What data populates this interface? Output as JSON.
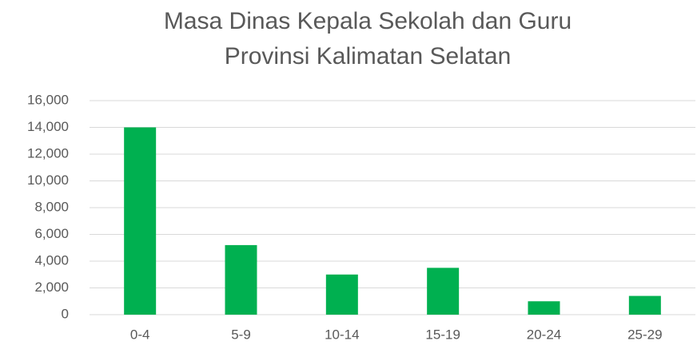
{
  "chart_data": {
    "type": "bar",
    "title": [
      "Masa Dinas Kepala Sekolah dan Guru",
      "Provinsi Kalimatan Selatan"
    ],
    "categories": [
      "0-4",
      "5-9",
      "10-14",
      "15-19",
      "20-24",
      "25-29"
    ],
    "values": [
      14000,
      5200,
      3000,
      3500,
      1000,
      1400
    ],
    "color": "#00b050",
    "ylim": [
      0,
      16000
    ],
    "yticks": [
      0,
      {
        "value": 2000,
        "label": "2,000"
      },
      {
        "value": 4000,
        "label": "4,000"
      },
      {
        "value": 6000,
        "label": "6,000"
      },
      {
        "value": 8000,
        "label": "8,000"
      },
      {
        "value": 10000,
        "label": "10,000"
      },
      {
        "value": 12000,
        "label": "12,000"
      },
      {
        "value": 14000,
        "label": "14,000"
      },
      {
        "value": 16000,
        "label": "16,000"
      }
    ],
    "grid": true
  }
}
